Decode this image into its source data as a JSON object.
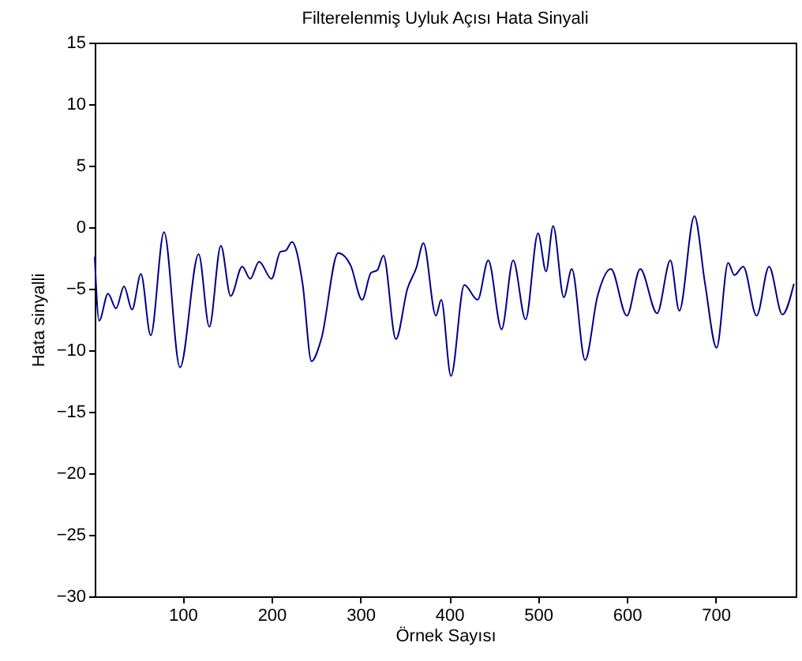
{
  "chart_data": {
    "type": "line",
    "title": "Filterelenmiş Uyluk Açısı Hata Sinyali",
    "xlabel": "Örnek Sayısı",
    "ylabel": "Hata sinyalli",
    "x": [
      1,
      6,
      16,
      25,
      34,
      43,
      53,
      64,
      79,
      97,
      118,
      130,
      143,
      154,
      167,
      176,
      186,
      200,
      210,
      216,
      223,
      235,
      245,
      256,
      275,
      289,
      302,
      312,
      319,
      326,
      340,
      353,
      363,
      371,
      385,
      391,
      402,
      417,
      432,
      444,
      459,
      472,
      486,
      500,
      509,
      517,
      529,
      538,
      553,
      567,
      582,
      600,
      615,
      634,
      649,
      659,
      676,
      688,
      701,
      714,
      721,
      731,
      746,
      760,
      775,
      788
    ],
    "series": [
      {
        "color": "#00008b",
        "values": [
          -2.4,
          -7.6,
          -5.4,
          -6.6,
          -4.8,
          -6.7,
          -3.8,
          -8.8,
          -0.4,
          -11.4,
          -2.2,
          -8.1,
          -1.5,
          -5.6,
          -3.2,
          -4.2,
          -2.8,
          -4.2,
          -2.0,
          -1.9,
          -1.2,
          -4.6,
          -10.9,
          -9.1,
          -2.1,
          -3.1,
          -5.9,
          -3.7,
          -3.5,
          -2.3,
          -9.1,
          -5.0,
          -3.3,
          -1.3,
          -7.2,
          -5.9,
          -12.1,
          -4.7,
          -5.9,
          -2.7,
          -8.3,
          -2.7,
          -7.5,
          -0.5,
          -3.6,
          0.1,
          -5.7,
          -3.4,
          -10.8,
          -5.6,
          -3.4,
          -7.2,
          -3.4,
          -7.0,
          -2.7,
          -6.8,
          0.9,
          -4.6,
          -9.8,
          -2.9,
          -3.9,
          -3.2,
          -7.2,
          -3.2,
          -7.1,
          -4.6
        ]
      }
    ],
    "xlim": [
      1,
      790
    ],
    "xticks": [
      100,
      200,
      300,
      400,
      500,
      600,
      700
    ],
    "ylim": [
      -30,
      15
    ],
    "yticks": [
      -30,
      -25,
      -20,
      -15,
      -10,
      -5,
      0,
      5,
      10,
      15
    ],
    "grid": false,
    "legend": false,
    "marker": "none",
    "line_style": "solid"
  }
}
